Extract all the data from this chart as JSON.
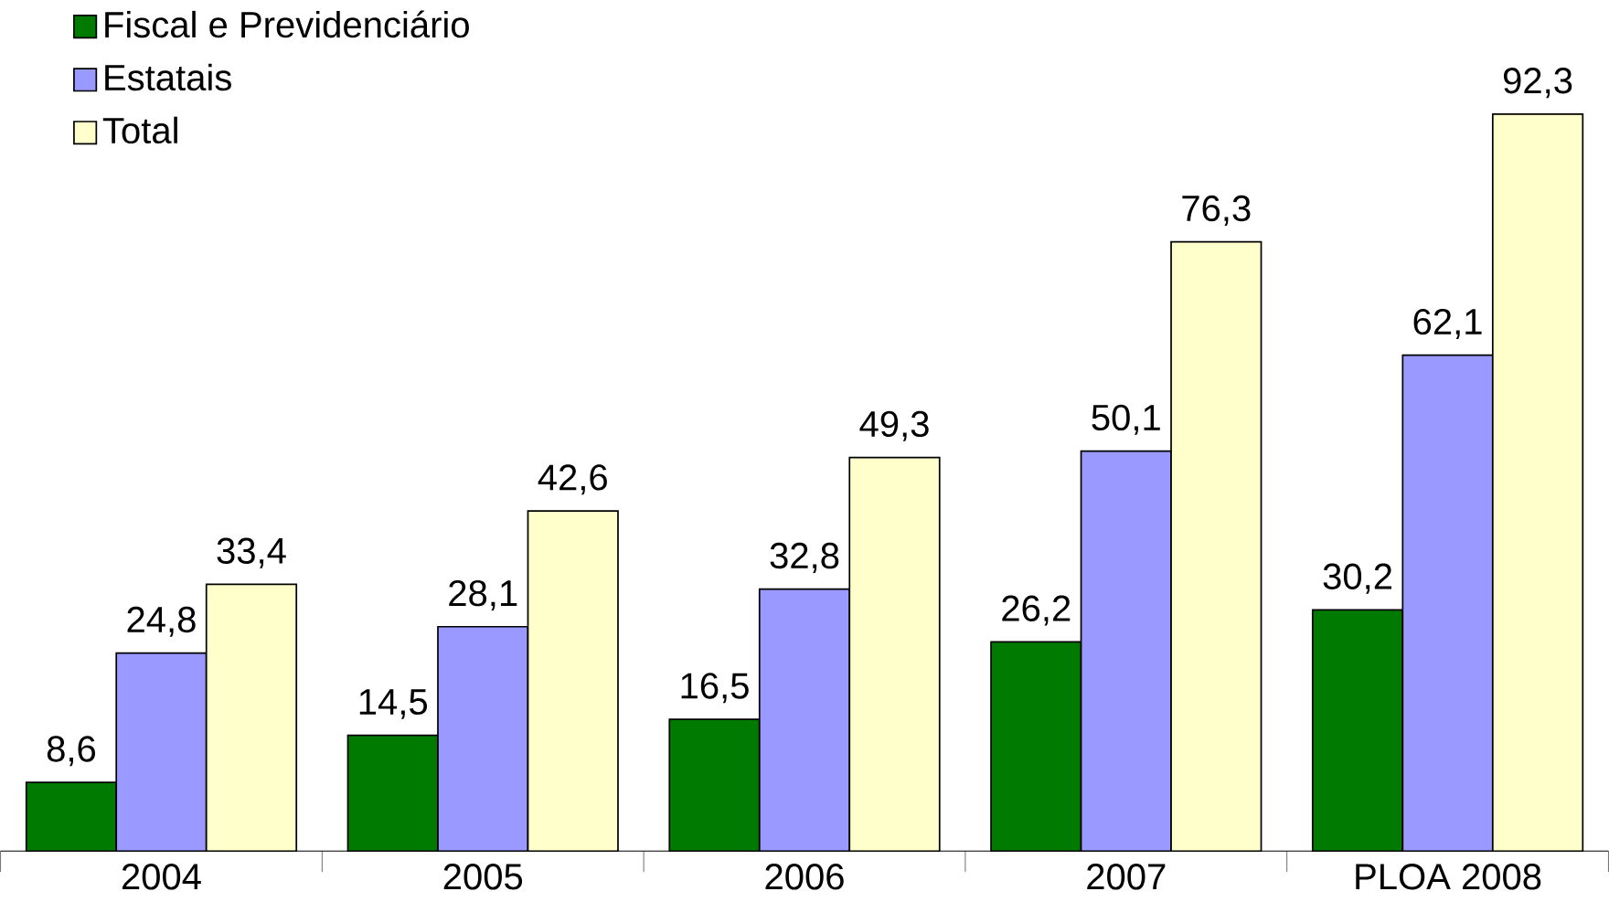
{
  "chart_data": {
    "type": "bar",
    "categories": [
      "2004",
      "2005",
      "2006",
      "2007",
      "PLOA 2008"
    ],
    "series": [
      {
        "name": "Fiscal e Previdenciário",
        "color": "#007a00",
        "values": [
          8.6,
          14.5,
          16.5,
          26.2,
          30.2
        ],
        "value_labels": [
          "8,6",
          "14,5",
          "16,5",
          "26,2",
          "30,2"
        ]
      },
      {
        "name": "Estatais",
        "color": "#9999ff",
        "values": [
          24.8,
          28.1,
          32.8,
          50.1,
          62.1
        ],
        "value_labels": [
          "24,8",
          "28,1",
          "32,8",
          "50,1",
          "62,1"
        ]
      },
      {
        "name": "Total",
        "color": "#ffffcc",
        "values": [
          33.4,
          42.6,
          49.3,
          76.3,
          92.3
        ],
        "value_labels": [
          "33,4",
          "42,6",
          "49,3",
          "76,3",
          "92,3"
        ]
      }
    ],
    "legend": "top left"
  }
}
